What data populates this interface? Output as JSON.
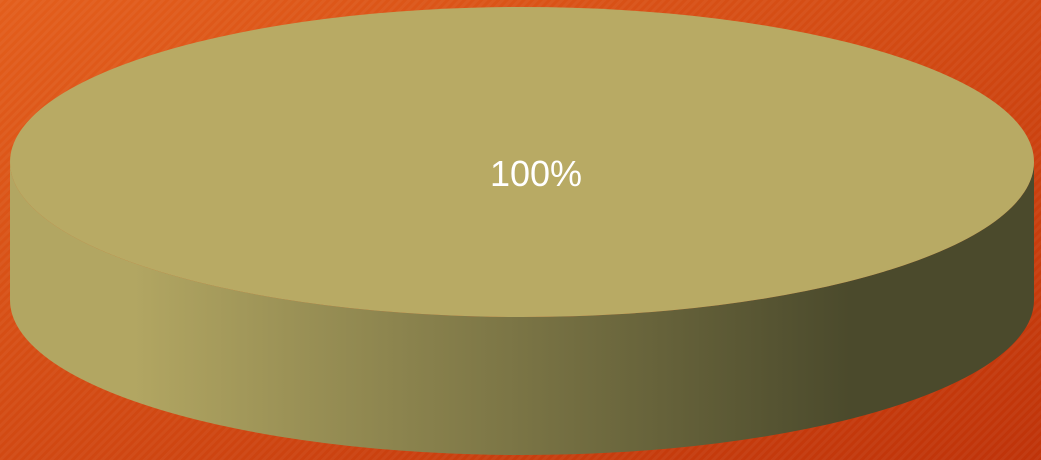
{
  "chart_data": {
    "type": "pie",
    "style": "3d",
    "categories": [
      ""
    ],
    "values": [
      100
    ],
    "data_labels": [
      "100%"
    ],
    "colors": {
      "slice_top": "#b8aa64",
      "slice_side_light": "#b2a662",
      "slice_side_dark": "#4b4a2c",
      "label": "#ffffff",
      "background_light": "#e35e1c",
      "background_dark": "#bf3309"
    },
    "legend": "none"
  }
}
